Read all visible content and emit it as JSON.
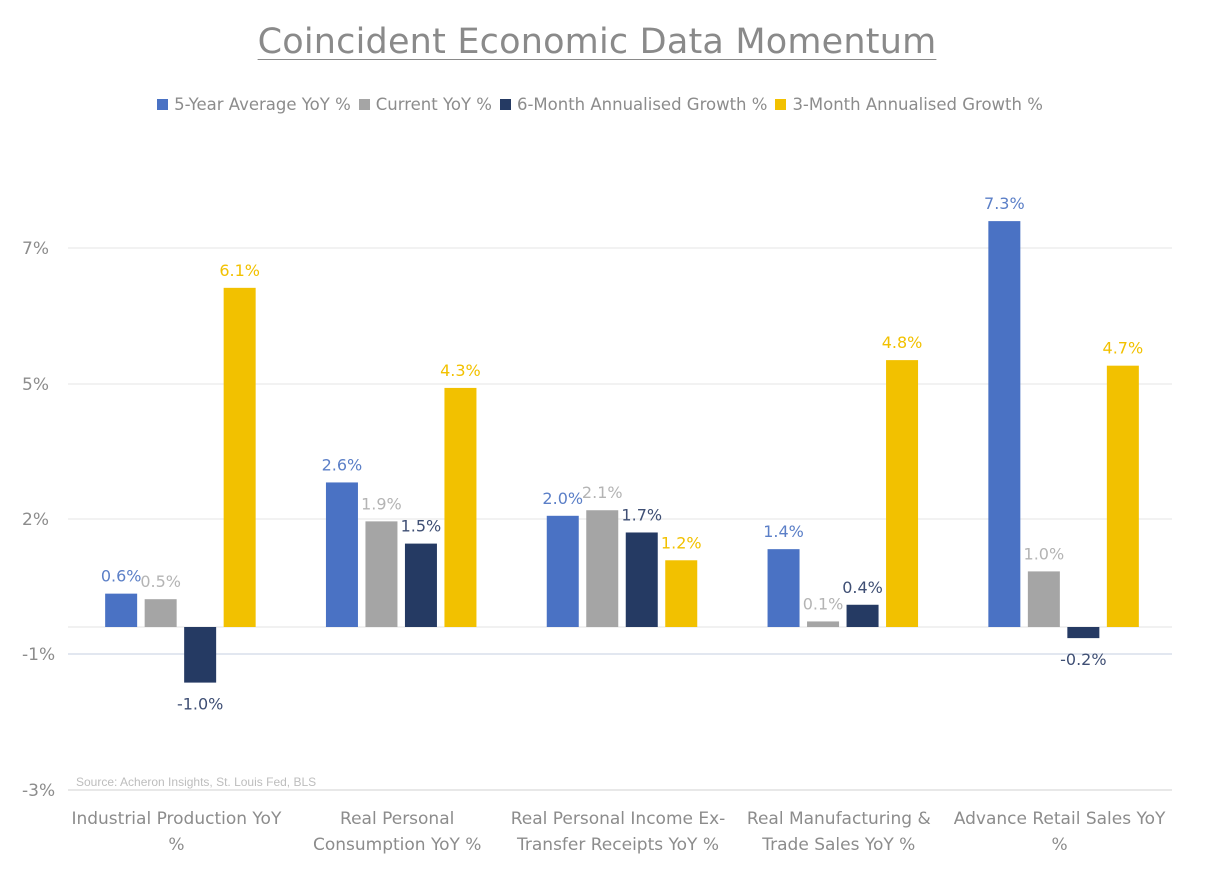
{
  "chart_data": {
    "type": "bar",
    "title": "Coincident Economic Data Momentum",
    "categories": [
      "Industrial Production YoY %",
      "Real Personal Consumption YoY %",
      "Real Personal Income Ex-Transfer Receipts YoY %",
      "Real Manufacturing & Trade Sales YoY %",
      "Advance Retail Sales YoY %"
    ],
    "category_lines": [
      [
        "Industrial Production YoY",
        "%"
      ],
      [
        "Real Personal",
        "Consumption YoY %"
      ],
      [
        "Real Personal Income Ex-",
        "Transfer Receipts YoY %"
      ],
      [
        "Real Manufacturing &",
        "Trade Sales YoY %"
      ],
      [
        "Advance Retail Sales YoY",
        "%"
      ]
    ],
    "series": [
      {
        "name": "5-Year Average YoY %",
        "color": "#4A72C4",
        "label_color": "#5B7FC7",
        "values": [
          0.6,
          2.6,
          2.0,
          1.4,
          7.3
        ],
        "labels": [
          "0.6%",
          "2.6%",
          "2.0%",
          "1.4%",
          "7.3%"
        ]
      },
      {
        "name": "Current YoY %",
        "color": "#A5A5A5",
        "label_color": "#B4B4B4",
        "values": [
          0.5,
          1.9,
          2.1,
          0.1,
          1.0
        ],
        "labels": [
          "0.5%",
          "1.9%",
          "2.1%",
          "0.1%",
          "1.0%"
        ]
      },
      {
        "name": "6-Month Annualised Growth %",
        "color": "#253A63",
        "label_color": "#3F4F74",
        "values": [
          -1.0,
          1.5,
          1.7,
          0.4,
          -0.2
        ],
        "labels": [
          "-1.0%",
          "1.5%",
          "1.7%",
          "0.4%",
          "-0.2%"
        ]
      },
      {
        "name": "3-Month Annualised Growth %",
        "color": "#F2C100",
        "label_color": "#F2C100",
        "values": [
          6.1,
          4.3,
          1.2,
          4.8,
          4.7
        ],
        "labels": [
          "6.1%",
          "4.3%",
          "1.2%",
          "4.8%",
          "4.7%"
        ]
      }
    ],
    "y_ticks": [
      "7%",
      "5%",
      "2%",
      "-1%",
      "-3%"
    ],
    "ylim": [
      -3,
      7
    ],
    "legend_position": "top",
    "grid": true,
    "source": "Source: Acheron Insights, St. Louis Fed, BLS"
  }
}
